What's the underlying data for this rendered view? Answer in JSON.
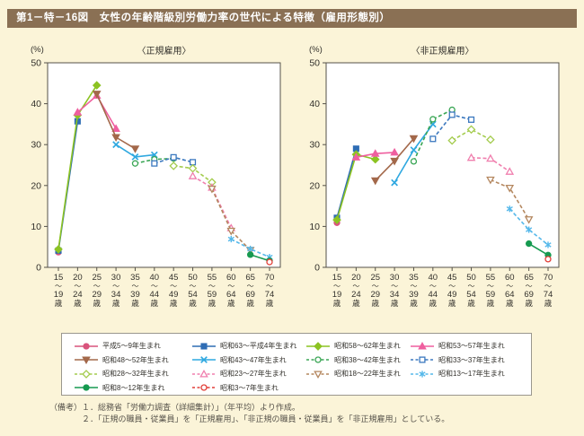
{
  "page": {
    "title": "第1－特－16図　女性の年齢階級別労働力率の世代による特徴（雇用形態別）",
    "footnotes": [
      "（備考）１．総務省「労働力調査（詳細集計）」（年平均）より作成。",
      "２．「正規の職員・従業員」を「正規雇用」、「非正規の職員・従業員」を「非正規雇用」としている。"
    ]
  },
  "colors": {
    "page_background": "#fbf4d8",
    "title_bar": "#8a7054",
    "plot_border": "#55524a",
    "legend_border": "#9a978e"
  },
  "chart_data": [
    {
      "type": "line",
      "title": "〈正規雇用〉",
      "unit_label": "(%)",
      "ylabel": "%",
      "ylim": [
        0,
        50
      ],
      "yticks": [
        0,
        10,
        20,
        30,
        40,
        50
      ],
      "grid": false,
      "categories": [
        "15～19歳",
        "20～24歳",
        "25～29歳",
        "30～34歳",
        "35～39歳",
        "40～44歳",
        "45～49歳",
        "50～54歳",
        "55～59歳",
        "60～64歳",
        "65～69歳",
        "70～74歳"
      ],
      "series": [
        {
          "name": "平成5～9年生まれ",
          "color": "#d9547d",
          "marker": "circle",
          "filled": true,
          "dashed": false,
          "values": [
            3.7,
            null,
            null,
            null,
            null,
            null,
            null,
            null,
            null,
            null,
            null,
            null
          ]
        },
        {
          "name": "昭和63～平成4年生まれ",
          "color": "#2e6db4",
          "marker": "square",
          "filled": true,
          "dashed": false,
          "values": [
            4.1,
            35.7,
            null,
            null,
            null,
            null,
            null,
            null,
            null,
            null,
            null,
            null
          ]
        },
        {
          "name": "昭和58～62年生まれ",
          "color": "#8cc322",
          "marker": "diamond",
          "filled": true,
          "dashed": false,
          "values": [
            4.4,
            37.2,
            44.5,
            null,
            null,
            null,
            null,
            null,
            null,
            null,
            null,
            null
          ]
        },
        {
          "name": "昭和53～57年生まれ",
          "color": "#ef5f9f",
          "marker": "triangle",
          "filled": true,
          "dashed": false,
          "values": [
            null,
            37.9,
            42.0,
            33.9,
            null,
            null,
            null,
            null,
            null,
            null,
            null,
            null
          ]
        },
        {
          "name": "昭和48～52年生まれ",
          "color": "#a3684a",
          "marker": "triangle-down",
          "filled": true,
          "dashed": false,
          "values": [
            null,
            null,
            42.4,
            31.8,
            29.0,
            null,
            null,
            null,
            null,
            null,
            null,
            null
          ]
        },
        {
          "name": "昭和43～47年生まれ",
          "color": "#2fa8e0",
          "marker": "x",
          "filled": false,
          "dashed": false,
          "values": [
            null,
            null,
            null,
            30.0,
            27.0,
            27.5,
            null,
            null,
            null,
            null,
            null,
            null
          ]
        },
        {
          "name": "昭和38～42年生まれ",
          "color": "#3aa655",
          "marker": "circle",
          "filled": false,
          "dashed": true,
          "values": [
            null,
            null,
            null,
            null,
            25.4,
            26.4,
            26.6,
            null,
            null,
            null,
            null,
            null
          ]
        },
        {
          "name": "昭和33～37年生まれ",
          "color": "#3b78bf",
          "marker": "square",
          "filled": false,
          "dashed": true,
          "values": [
            null,
            null,
            null,
            null,
            null,
            25.4,
            26.9,
            25.7,
            null,
            null,
            null,
            null
          ]
        },
        {
          "name": "昭和28～32年生まれ",
          "color": "#a4cc4e",
          "marker": "diamond",
          "filled": false,
          "dashed": true,
          "values": [
            null,
            null,
            null,
            null,
            null,
            null,
            24.8,
            24.2,
            20.8,
            null,
            null,
            null
          ]
        },
        {
          "name": "昭和23～27年生まれ",
          "color": "#f07fae",
          "marker": "triangle",
          "filled": false,
          "dashed": true,
          "values": [
            null,
            null,
            null,
            null,
            null,
            null,
            null,
            22.3,
            19.5,
            9.6,
            null,
            null
          ]
        },
        {
          "name": "昭和18～22年生まれ",
          "color": "#b4875f",
          "marker": "triangle-down",
          "filled": false,
          "dashed": true,
          "values": [
            null,
            null,
            null,
            null,
            null,
            null,
            null,
            null,
            19.2,
            8.9,
            4.2,
            null
          ]
        },
        {
          "name": "昭和13～17年生まれ",
          "color": "#55b8ea",
          "marker": "asterisk",
          "filled": false,
          "dashed": true,
          "values": [
            null,
            null,
            null,
            null,
            null,
            null,
            null,
            null,
            null,
            6.9,
            4.5,
            2.5
          ]
        },
        {
          "name": "昭和8～12年生まれ",
          "color": "#169a50",
          "marker": "circle",
          "filled": true,
          "dashed": false,
          "values": [
            null,
            null,
            null,
            null,
            null,
            null,
            null,
            null,
            null,
            null,
            3.1,
            1.6
          ]
        },
        {
          "name": "昭和3～7年生まれ",
          "color": "#e23f38",
          "marker": "circle",
          "filled": false,
          "dashed": true,
          "values": [
            null,
            null,
            null,
            null,
            null,
            null,
            null,
            null,
            null,
            null,
            null,
            1.3
          ]
        }
      ]
    },
    {
      "type": "line",
      "title": "〈非正規雇用〉",
      "unit_label": "(%)",
      "ylabel": "%",
      "ylim": [
        0,
        50
      ],
      "yticks": [
        0,
        10,
        20,
        30,
        40,
        50
      ],
      "grid": false,
      "categories": [
        "15～19歳",
        "20～24歳",
        "25～29歳",
        "30～34歳",
        "35～39歳",
        "40～44歳",
        "45～49歳",
        "50～54歳",
        "55～59歳",
        "60～64歳",
        "65～69歳",
        "70～74歳"
      ],
      "series": [
        {
          "name": "平成5～9年生まれ",
          "color": "#d9547d",
          "marker": "circle",
          "filled": true,
          "dashed": false,
          "values": [
            10.9,
            null,
            null,
            null,
            null,
            null,
            null,
            null,
            null,
            null,
            null,
            null
          ]
        },
        {
          "name": "昭和63～平成4年生まれ",
          "color": "#2e6db4",
          "marker": "square",
          "filled": true,
          "dashed": false,
          "values": [
            12.1,
            29.0,
            null,
            null,
            null,
            null,
            null,
            null,
            null,
            null,
            null,
            null
          ]
        },
        {
          "name": "昭和58～62年生まれ",
          "color": "#8cc322",
          "marker": "diamond",
          "filled": true,
          "dashed": false,
          "values": [
            11.6,
            27.6,
            26.4,
            null,
            null,
            null,
            null,
            null,
            null,
            null,
            null,
            null
          ]
        },
        {
          "name": "昭和53～57年生まれ",
          "color": "#ef5f9f",
          "marker": "triangle",
          "filled": true,
          "dashed": false,
          "values": [
            null,
            26.9,
            27.8,
            28.1,
            null,
            null,
            null,
            null,
            null,
            null,
            null,
            null
          ]
        },
        {
          "name": "昭和48～52年生まれ",
          "color": "#a3684a",
          "marker": "triangle-down",
          "filled": true,
          "dashed": false,
          "values": [
            null,
            null,
            21.2,
            26.0,
            31.5,
            null,
            null,
            null,
            null,
            null,
            null,
            null
          ]
        },
        {
          "name": "昭和43～47年生まれ",
          "color": "#2fa8e0",
          "marker": "x",
          "filled": false,
          "dashed": false,
          "values": [
            null,
            null,
            null,
            20.7,
            28.7,
            35.0,
            null,
            null,
            null,
            null,
            null,
            null
          ]
        },
        {
          "name": "昭和38～42年生まれ",
          "color": "#3aa655",
          "marker": "circle",
          "filled": false,
          "dashed": true,
          "values": [
            null,
            null,
            null,
            null,
            25.9,
            36.2,
            38.5,
            null,
            null,
            null,
            null,
            null
          ]
        },
        {
          "name": "昭和33～37年生まれ",
          "color": "#3b78bf",
          "marker": "square",
          "filled": false,
          "dashed": true,
          "values": [
            null,
            null,
            null,
            null,
            null,
            31.4,
            37.3,
            36.1,
            null,
            null,
            null,
            null
          ]
        },
        {
          "name": "昭和28～32年生まれ",
          "color": "#a4cc4e",
          "marker": "diamond",
          "filled": false,
          "dashed": true,
          "values": [
            null,
            null,
            null,
            null,
            null,
            null,
            31.0,
            33.7,
            31.2,
            null,
            null,
            null
          ]
        },
        {
          "name": "昭和23～27年生まれ",
          "color": "#f07fae",
          "marker": "triangle",
          "filled": false,
          "dashed": true,
          "values": [
            null,
            null,
            null,
            null,
            null,
            null,
            null,
            26.8,
            26.6,
            23.4,
            null,
            null
          ]
        },
        {
          "name": "昭和18～22年生まれ",
          "color": "#b4875f",
          "marker": "triangle-down",
          "filled": false,
          "dashed": true,
          "values": [
            null,
            null,
            null,
            null,
            null,
            null,
            null,
            null,
            21.4,
            19.4,
            11.7,
            null
          ]
        },
        {
          "name": "昭和13～17年生まれ",
          "color": "#55b8ea",
          "marker": "asterisk",
          "filled": false,
          "dashed": true,
          "values": [
            null,
            null,
            null,
            null,
            null,
            null,
            null,
            null,
            null,
            14.3,
            9.2,
            5.5
          ]
        },
        {
          "name": "昭和8～12年生まれ",
          "color": "#169a50",
          "marker": "circle",
          "filled": true,
          "dashed": false,
          "values": [
            null,
            null,
            null,
            null,
            null,
            null,
            null,
            null,
            null,
            null,
            5.8,
            3.0
          ]
        },
        {
          "name": "昭和3～7年生まれ",
          "color": "#e23f38",
          "marker": "circle",
          "filled": false,
          "dashed": true,
          "values": [
            null,
            null,
            null,
            null,
            null,
            null,
            null,
            null,
            null,
            null,
            null,
            2.0
          ]
        }
      ]
    }
  ]
}
